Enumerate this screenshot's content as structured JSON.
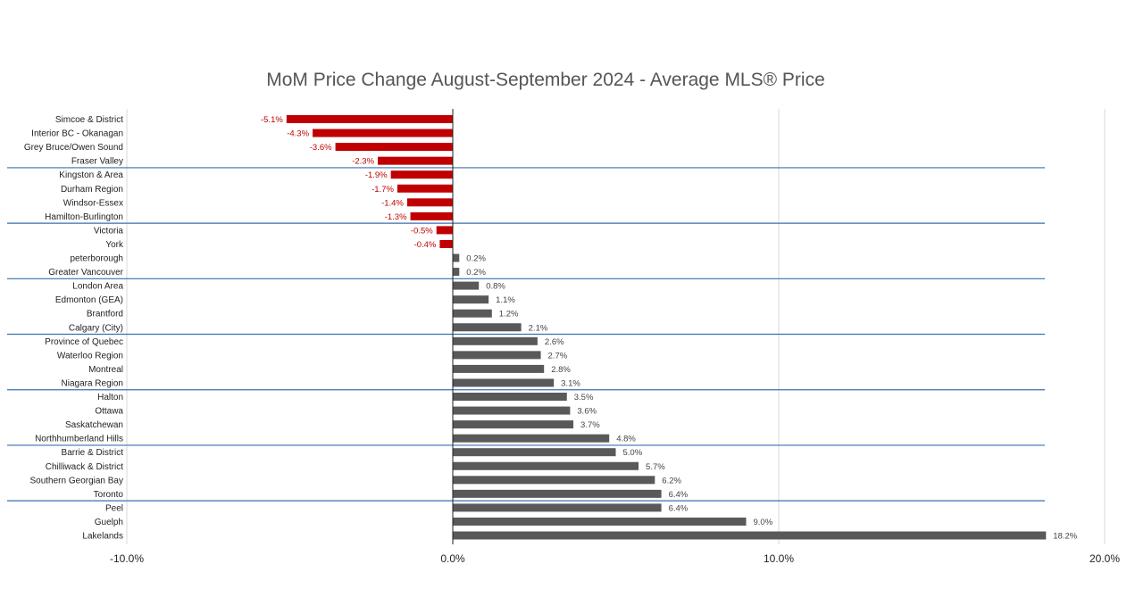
{
  "chart_data": {
    "type": "bar",
    "orientation": "horizontal",
    "title": "MoM Price Change August-September 2024 - Average MLS® Price",
    "xlim": [
      -10,
      20
    ],
    "x_ticks": [
      "-10.0%",
      "0.0%",
      "10.0%",
      "20.0%"
    ],
    "x_tick_values": [
      -10,
      0,
      10,
      20
    ],
    "grid": "vertical",
    "value_suffix": "%",
    "colors": {
      "negative": "#c00000",
      "positive": "#595959",
      "group_divider": "#3a6fb0"
    },
    "group_dividers_after_index": [
      3,
      7,
      11,
      15,
      19,
      23,
      27
    ],
    "categories": [
      "Simcoe & District",
      "Interior BC - Okanagan",
      "Grey Bruce/Owen Sound",
      "Fraser Valley",
      "Kingston & Area",
      "Durham Region",
      "Windsor-Essex",
      "Hamilton-Burlington",
      "Victoria",
      "York",
      "peterborough",
      "Greater Vancouver",
      "London Area",
      "Edmonton (GEA)",
      "Brantford",
      "Calgary (City)",
      "Province of Quebec",
      "Waterloo Region",
      "Montreal",
      "Niagara Region",
      "Halton",
      "Ottawa",
      "Saskatchewan",
      "Northhumberland Hills",
      "Barrie & District",
      "Chilliwack & District",
      "Southern Georgian Bay",
      "Toronto",
      "Peel",
      "Guelph",
      "Lakelands"
    ],
    "values": [
      -5.1,
      -4.3,
      -3.6,
      -2.3,
      -1.9,
      -1.7,
      -1.4,
      -1.3,
      -0.5,
      -0.4,
      0.2,
      0.2,
      0.8,
      1.1,
      1.2,
      2.1,
      2.6,
      2.7,
      2.8,
      3.1,
      3.5,
      3.6,
      3.7,
      4.8,
      5.0,
      5.7,
      6.2,
      6.4,
      6.4,
      9.0,
      18.2
    ]
  }
}
